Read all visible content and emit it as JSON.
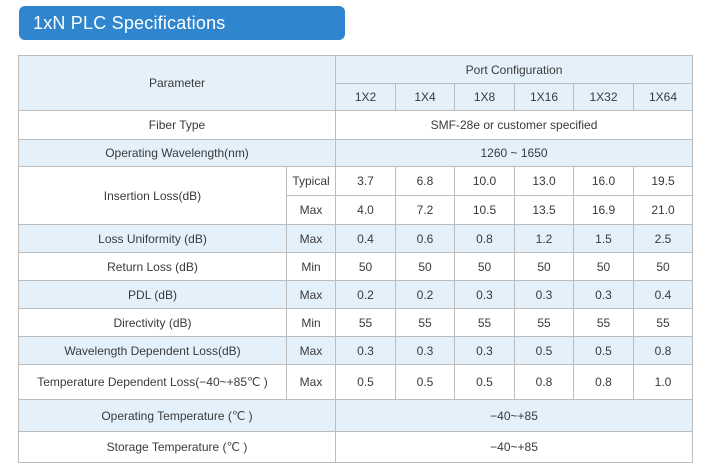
{
  "title": "1xN PLC Specifications",
  "header": {
    "parameter": "Parameter",
    "port_configuration": "Port Configuration",
    "ports": [
      "1X2",
      "1X4",
      "1X8",
      "1X16",
      "1X32",
      "1X64"
    ]
  },
  "fiber_type": {
    "label": "Fiber Type",
    "value": "SMF-28e or customer specified"
  },
  "operating_wavelength": {
    "label": "Operating Wavelength(nm)",
    "value": "1260 ~ 1650"
  },
  "insertion_loss": {
    "label": "Insertion Loss(dB)",
    "typical": {
      "cond": "Typical",
      "values": [
        "3.7",
        "6.8",
        "10.0",
        "13.0",
        "16.0",
        "19.5"
      ]
    },
    "max": {
      "cond": "Max",
      "values": [
        "4.0",
        "7.2",
        "10.5",
        "13.5",
        "16.9",
        "21.0"
      ]
    }
  },
  "loss_uniformity": {
    "label": "Loss Uniformity (dB)",
    "cond": "Max",
    "values": [
      "0.4",
      "0.6",
      "0.8",
      "1.2",
      "1.5",
      "2.5"
    ]
  },
  "return_loss": {
    "label": "Return Loss (dB)",
    "cond": "Min",
    "values": [
      "50",
      "50",
      "50",
      "50",
      "50",
      "50"
    ]
  },
  "pdl": {
    "label": "PDL (dB)",
    "cond": "Max",
    "values": [
      "0.2",
      "0.2",
      "0.3",
      "0.3",
      "0.3",
      "0.4"
    ]
  },
  "directivity": {
    "label": "Directivity (dB)",
    "cond": "Min",
    "values": [
      "55",
      "55",
      "55",
      "55",
      "55",
      "55"
    ]
  },
  "wdl": {
    "label": "Wavelength Dependent Loss(dB)",
    "cond": "Max",
    "values": [
      "0.3",
      "0.3",
      "0.3",
      "0.5",
      "0.5",
      "0.8"
    ]
  },
  "tdl": {
    "label": "Temperature Dependent Loss(−40~+85℃ )",
    "cond": "Max",
    "values": [
      "0.5",
      "0.5",
      "0.5",
      "0.8",
      "0.8",
      "1.0"
    ]
  },
  "operating_temperature": {
    "label": "Operating Temperature (℃ )",
    "value": "−40~+85"
  },
  "storage_temperature": {
    "label": "Storage Temperature (℃ )",
    "value": "−40~+85"
  },
  "colors": {
    "banner": "#2f86cf",
    "row_tint": "#e4f1fb",
    "border": "#bdbdbd"
  }
}
